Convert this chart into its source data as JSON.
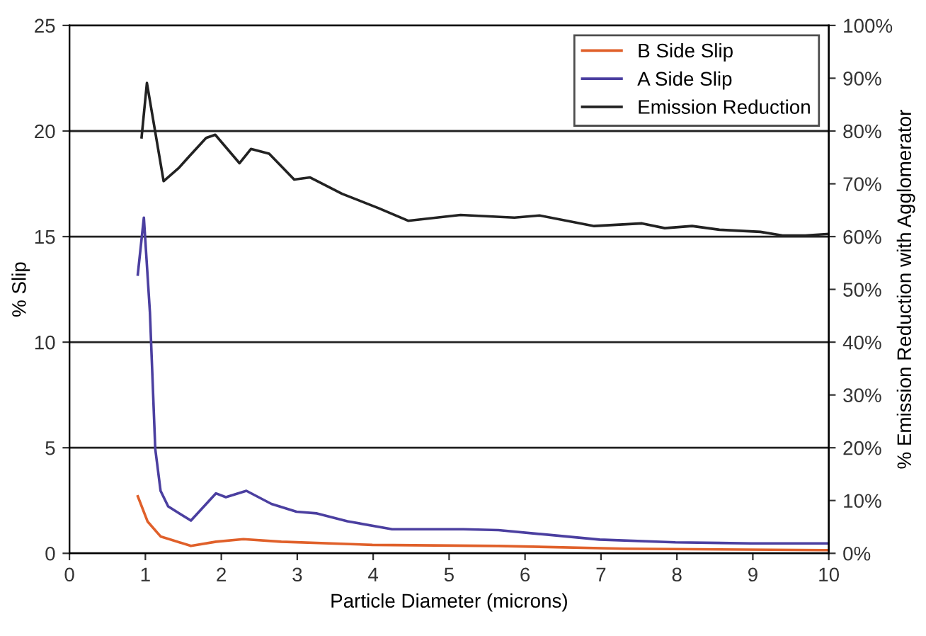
{
  "chart_data": {
    "type": "line",
    "xlabel": "Particle Diameter (microns)",
    "ylabel": "% Slip",
    "y2label": "% Emission Reduction with Agglomerator",
    "xlim": [
      0,
      10
    ],
    "xticks": [
      0,
      1,
      2,
      3,
      4,
      5,
      6,
      7,
      8,
      9,
      10
    ],
    "ylim": [
      0,
      25
    ],
    "yticks": [
      0,
      5,
      10,
      15,
      20,
      25
    ],
    "y2lim": [
      0,
      100
    ],
    "y2ticks": [
      {
        "value": 0,
        "label": "0%"
      },
      {
        "value": 10,
        "label": "10%"
      },
      {
        "value": 20,
        "label": "20%"
      },
      {
        "value": 30,
        "label": "30%"
      },
      {
        "value": 40,
        "label": "40%"
      },
      {
        "value": 50,
        "label": "50%"
      },
      {
        "value": 60,
        "label": "60%"
      },
      {
        "value": 70,
        "label": "70%"
      },
      {
        "value": 80,
        "label": "80%"
      },
      {
        "value": 90,
        "label": "90%"
      },
      {
        "value": 100,
        "label": "100%"
      }
    ],
    "grid": "y",
    "legend": "top right",
    "marker": "none",
    "line_style": "solid",
    "series": [
      {
        "name": "B Side Slip",
        "color": "#e0602a",
        "x": [
          0.9,
          1.03,
          1.2,
          1.6,
          1.93,
          2.29,
          2.79,
          3.99,
          5.65,
          7.31,
          9.94,
          10
        ],
        "values": [
          2.7,
          1.5,
          0.8,
          0.35,
          0.55,
          0.67,
          0.55,
          0.4,
          0.35,
          0.22,
          0.15,
          0.15
        ]
      },
      {
        "name": "A Side Slip",
        "color": "#4b3fa0",
        "x": [
          0.9,
          0.98,
          1.06,
          1.13,
          1.2,
          1.3,
          1.6,
          1.93,
          2.06,
          2.33,
          2.66,
          2.99,
          3.26,
          3.66,
          4.25,
          5.19,
          5.65,
          6.18,
          6.98,
          7.98,
          8.98,
          10
        ],
        "values": [
          13.2,
          15.9,
          11.4,
          4.95,
          2.96,
          2.22,
          1.55,
          2.84,
          2.66,
          2.96,
          2.34,
          1.97,
          1.89,
          1.52,
          1.14,
          1.14,
          1.1,
          0.92,
          0.65,
          0.52,
          0.47,
          0.47
        ]
      },
      {
        "name": "Emission Reduction",
        "color": "#222222",
        "axis": "y2",
        "x": [
          0.95,
          1.02,
          1.24,
          1.44,
          1.59,
          1.8,
          1.92,
          2.24,
          2.39,
          2.63,
          2.96,
          3.17,
          3.59,
          4.07,
          4.46,
          5.15,
          5.86,
          6.19,
          6.91,
          7.54,
          7.84,
          8.2,
          8.56,
          9.1,
          9.39,
          9.69,
          10
        ],
        "values": [
          78.8,
          89.1,
          70.5,
          73,
          75.4,
          78.7,
          79.3,
          73.9,
          76.6,
          75.7,
          70.8,
          71.2,
          68.1,
          65.4,
          63,
          64.1,
          63.6,
          64,
          62,
          62.5,
          61.6,
          62,
          61.3,
          60.9,
          60.2,
          60.2,
          60.5
        ]
      }
    ]
  }
}
